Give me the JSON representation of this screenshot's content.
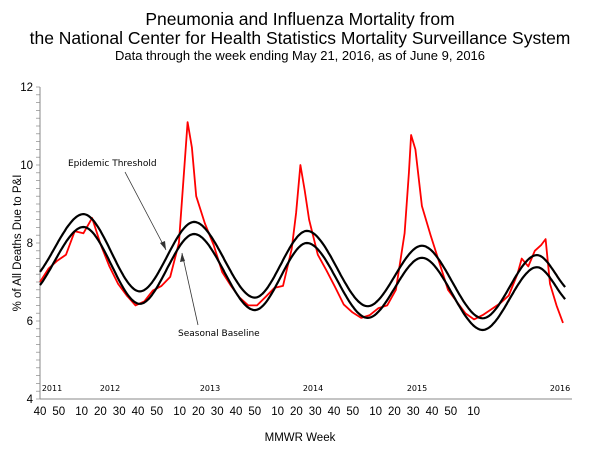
{
  "title_line1": "Pneumonia and Influenza Mortality from",
  "title_line2": "the National Center for Health Statistics Mortality Surveillance System",
  "subtitle": "Data through the week ending May 21, 2016, as of June 9, 2016",
  "chart_data": {
    "type": "line",
    "xlabel": "MMWR Week",
    "ylabel": "% of All Deaths Due to P&I",
    "ylim": [
      4,
      12
    ],
    "yticks": [
      "4",
      "6",
      "8",
      "10",
      "12"
    ],
    "xtick_labels": [
      "40",
      "50",
      "10",
      "20",
      "30",
      "40",
      "50",
      "10",
      "20",
      "30",
      "40",
      "50",
      "10",
      "20",
      "30",
      "40",
      "50",
      "10",
      "20",
      "30",
      "40",
      "50",
      "10"
    ],
    "year_labels": [
      "2011",
      "2012",
      "2013",
      "2014",
      "2015",
      "2016"
    ],
    "grid": false,
    "annotations": [
      "Epidemic Threshold",
      "Seasonal Baseline"
    ],
    "colors": {
      "observed": "#ff0000",
      "baseline": "#000000",
      "threshold": "#000000"
    },
    "series": [
      {
        "key": "observed",
        "points": [
          [
            "2011-40",
            7.0
          ],
          [
            "2011-44",
            7.35
          ],
          [
            "2011-48",
            7.55
          ],
          [
            "2011-52",
            7.7
          ],
          [
            "2012-04",
            8.3
          ],
          [
            "2012-08",
            8.25
          ],
          [
            "2012-12",
            8.64
          ],
          [
            "2012-16",
            7.95
          ],
          [
            "2012-20",
            7.4
          ],
          [
            "2012-24",
            6.95
          ],
          [
            "2012-28",
            6.65
          ],
          [
            "2012-32",
            6.4
          ],
          [
            "2012-36",
            6.5
          ],
          [
            "2012-40",
            6.78
          ],
          [
            "2012-44",
            6.9
          ],
          [
            "2012-48",
            7.13
          ],
          [
            "2012-52",
            8.0
          ],
          [
            "2013-04",
            11.1
          ],
          [
            "2013-06",
            10.45
          ],
          [
            "2013-08",
            9.2
          ],
          [
            "2013-12",
            8.5
          ],
          [
            "2013-16",
            7.95
          ],
          [
            "2013-20",
            7.25
          ],
          [
            "2013-24",
            6.9
          ],
          [
            "2013-28",
            6.6
          ],
          [
            "2013-32",
            6.4
          ],
          [
            "2013-36",
            6.4
          ],
          [
            "2013-40",
            6.62
          ],
          [
            "2013-44",
            6.85
          ],
          [
            "2013-48",
            6.9
          ],
          [
            "2013-52",
            7.85
          ],
          [
            "2014-02",
            8.77
          ],
          [
            "2014-04",
            10.0
          ],
          [
            "2014-06",
            9.35
          ],
          [
            "2014-08",
            8.6
          ],
          [
            "2014-12",
            7.7
          ],
          [
            "2014-16",
            7.3
          ],
          [
            "2014-20",
            6.87
          ],
          [
            "2014-24",
            6.42
          ],
          [
            "2014-28",
            6.22
          ],
          [
            "2014-32",
            6.08
          ],
          [
            "2014-36",
            6.15
          ],
          [
            "2014-40",
            6.33
          ],
          [
            "2014-44",
            6.4
          ],
          [
            "2014-48",
            6.8
          ],
          [
            "2014-52",
            8.25
          ],
          [
            "2015-01",
            9.8
          ],
          [
            "2015-02",
            10.77
          ],
          [
            "2015-04",
            10.4
          ],
          [
            "2015-07",
            8.95
          ],
          [
            "2015-11",
            8.2
          ],
          [
            "2015-15",
            7.5
          ],
          [
            "2015-19",
            6.8
          ],
          [
            "2015-23",
            6.5
          ],
          [
            "2015-27",
            6.2
          ],
          [
            "2015-31",
            6.04
          ],
          [
            "2015-35",
            6.15
          ],
          [
            "2015-39",
            6.3
          ],
          [
            "2015-43",
            6.45
          ],
          [
            "2015-47",
            6.65
          ],
          [
            "2015-51",
            7.2
          ],
          [
            "2016-01",
            7.6
          ],
          [
            "2016-04",
            7.4
          ],
          [
            "2016-07",
            7.8
          ],
          [
            "2016-10",
            7.95
          ],
          [
            "2016-12",
            8.1
          ],
          [
            "2016-14",
            6.95
          ],
          [
            "2016-17",
            6.4
          ],
          [
            "2016-20",
            5.95
          ]
        ]
      },
      {
        "key": "threshold",
        "name": "Epidemic Threshold",
        "points": [
          [
            "2011-40",
            7.26
          ],
          [
            "2012-08",
            8.74
          ],
          [
            "2012-34",
            6.76
          ],
          [
            "2013-07",
            8.54
          ],
          [
            "2013-35",
            6.6
          ],
          [
            "2014-07",
            8.31
          ],
          [
            "2014-35",
            6.38
          ],
          [
            "2015-07",
            7.93
          ],
          [
            "2015-35",
            6.07
          ],
          [
            "2016-08",
            7.69
          ],
          [
            "2016-21",
            6.87
          ]
        ]
      },
      {
        "key": "baseline",
        "name": "Seasonal Baseline",
        "points": [
          [
            "2011-40",
            6.92
          ],
          [
            "2012-08",
            8.41
          ],
          [
            "2012-34",
            6.44
          ],
          [
            "2013-07",
            8.23
          ],
          [
            "2013-35",
            6.28
          ],
          [
            "2014-07",
            8.0
          ],
          [
            "2014-35",
            6.08
          ],
          [
            "2015-07",
            7.62
          ],
          [
            "2015-35",
            5.77
          ],
          [
            "2016-08",
            7.38
          ],
          [
            "2016-21",
            6.56
          ]
        ]
      }
    ]
  }
}
